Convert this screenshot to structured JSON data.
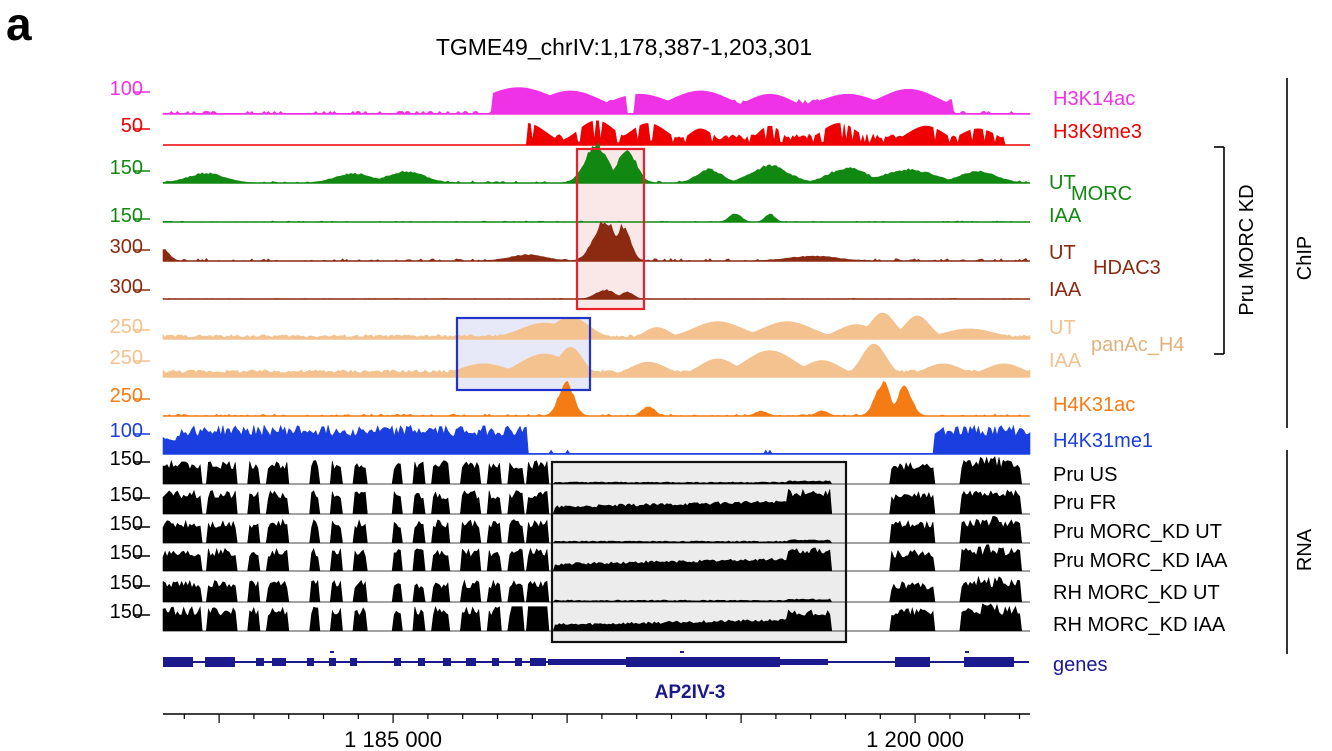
{
  "panel_letter": "a",
  "chart_data": {
    "type": "area",
    "title": "TGME49_chrIV:1,178,387-1,203,301",
    "xlim": [
      1178387,
      1203301
    ],
    "x_ticks": [
      {
        "value": 1185000,
        "label": "1 185 000"
      },
      {
        "value": 1200000,
        "label": "1 200 000"
      }
    ],
    "tracks": [
      {
        "key": "h3k14ac",
        "scale": "100",
        "color": "#f032e6",
        "name": "H3K14ac",
        "group": "ChIP",
        "style": "area"
      },
      {
        "key": "h3k9me3",
        "scale": "50",
        "color": "#ee0000",
        "name": "H3K9me3",
        "group": "ChIP",
        "style": "area"
      },
      {
        "key": "morc_ut",
        "scale": "150",
        "color": "#118811",
        "condition": "UT",
        "group": "ChIP / Pru MORC KD",
        "style": "area"
      },
      {
        "key": "morc_iaa",
        "scale": "150",
        "color": "#118811",
        "condition": "IAA",
        "group": "ChIP / Pru MORC KD",
        "style": "area"
      },
      {
        "key": "hdac3_ut",
        "scale": "300",
        "color": "#8b2a10",
        "condition": "UT",
        "group": "ChIP / Pru MORC KD",
        "style": "area"
      },
      {
        "key": "hdac3_iaa",
        "scale": "300",
        "color": "#8b2a10",
        "condition": "IAA",
        "group": "ChIP / Pru MORC KD",
        "style": "area"
      },
      {
        "key": "panac_ut",
        "scale": "250",
        "color": "#f3c28f",
        "condition": "UT",
        "group": "ChIP / Pru MORC KD",
        "style": "area"
      },
      {
        "key": "panac_iaa",
        "scale": "250",
        "color": "#f3c28f",
        "condition": "IAA",
        "group": "ChIP / Pru MORC KD",
        "style": "area"
      },
      {
        "key": "h4k31ac",
        "scale": "250",
        "color": "#f57c14",
        "name": "H4K31ac",
        "group": "ChIP",
        "style": "area"
      },
      {
        "key": "h4k31me1",
        "scale": "100",
        "color": "#1a3ee0",
        "name": "H4K31me1",
        "group": "ChIP",
        "style": "area"
      },
      {
        "key": "rna_pru_us",
        "scale": "150",
        "color": "#000000",
        "name": "Pru US",
        "group": "RNA",
        "style": "rna"
      },
      {
        "key": "rna_pru_fr",
        "scale": "150",
        "color": "#000000",
        "name": "Pru FR",
        "group": "RNA",
        "style": "rna"
      },
      {
        "key": "rna_pru_ut",
        "scale": "150",
        "color": "#000000",
        "name": "Pru MORC_KD UT",
        "group": "RNA",
        "style": "rna"
      },
      {
        "key": "rna_pru_iaa",
        "scale": "150",
        "color": "#000000",
        "name": "Pru MORC_KD IAA",
        "group": "RNA",
        "style": "rna"
      },
      {
        "key": "rna_rh_ut",
        "scale": "150",
        "color": "#000000",
        "name": "RH MORC_KD UT",
        "group": "RNA",
        "style": "rna"
      },
      {
        "key": "rna_rh_iaa",
        "scale": "150",
        "color": "#000000",
        "name": "RH MORC_KD IAA",
        "group": "RNA",
        "style": "rna"
      }
    ],
    "group_labels": {
      "morc": "MORC",
      "hdac3": "HDAC3",
      "panac": "panAc_H4",
      "pru_morc_kd": "Pru MORC KD",
      "chip": "ChIP",
      "rna": "RNA"
    },
    "genes_track": {
      "label": "genes",
      "color": "#1a1a8c",
      "highlight_gene": "AP2IV-3"
    },
    "highlight_boxes": [
      {
        "color": "#e8212b",
        "region": [
          1189600,
          1191700
        ],
        "tracks": "MORC / HDAC3"
      },
      {
        "color": "#2233cc",
        "region": [
          1186000,
          1189900
        ],
        "tracks": "panAc_H4"
      },
      {
        "color": "#111111",
        "region": [
          1188900,
          1197500
        ],
        "tracks": "RNA"
      }
    ]
  }
}
